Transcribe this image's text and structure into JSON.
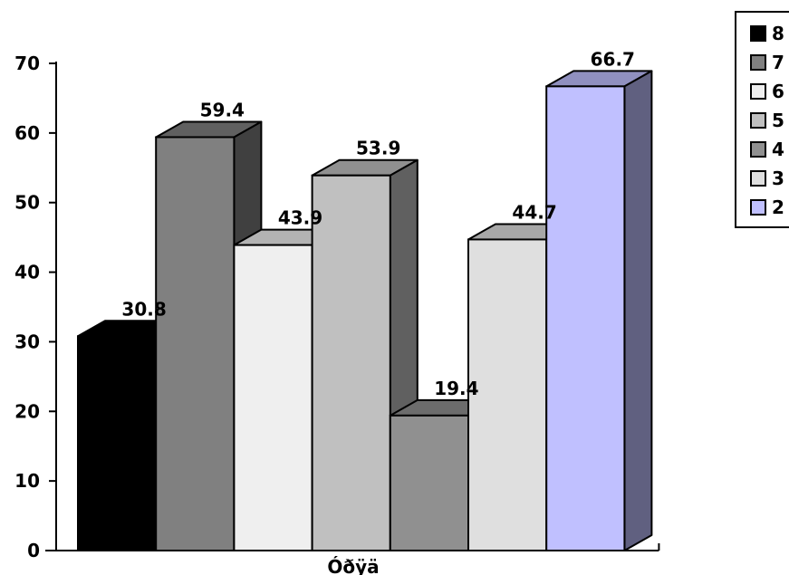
{
  "chart_data": {
    "type": "bar",
    "categories": [
      "Óðÿä"
    ],
    "ylim": [
      0,
      70
    ],
    "yticks": [
      0,
      10,
      20,
      30,
      40,
      50,
      60,
      70
    ],
    "grid": false,
    "legend_position": "top-right",
    "series": [
      {
        "name": "8",
        "values": [
          30.8
        ],
        "color": "#000000"
      },
      {
        "name": "7",
        "values": [
          59.4
        ],
        "color": "#808080"
      },
      {
        "name": "6",
        "values": [
          43.9
        ],
        "color": "#efefef"
      },
      {
        "name": "5",
        "values": [
          53.9
        ],
        "color": "#c0c0c0"
      },
      {
        "name": "4",
        "values": [
          19.4
        ],
        "color": "#909090"
      },
      {
        "name": "3",
        "values": [
          44.7
        ],
        "color": "#dfdfdf"
      },
      {
        "name": "2",
        "values": [
          66.7
        ],
        "color": "#c0c0ff"
      }
    ]
  }
}
